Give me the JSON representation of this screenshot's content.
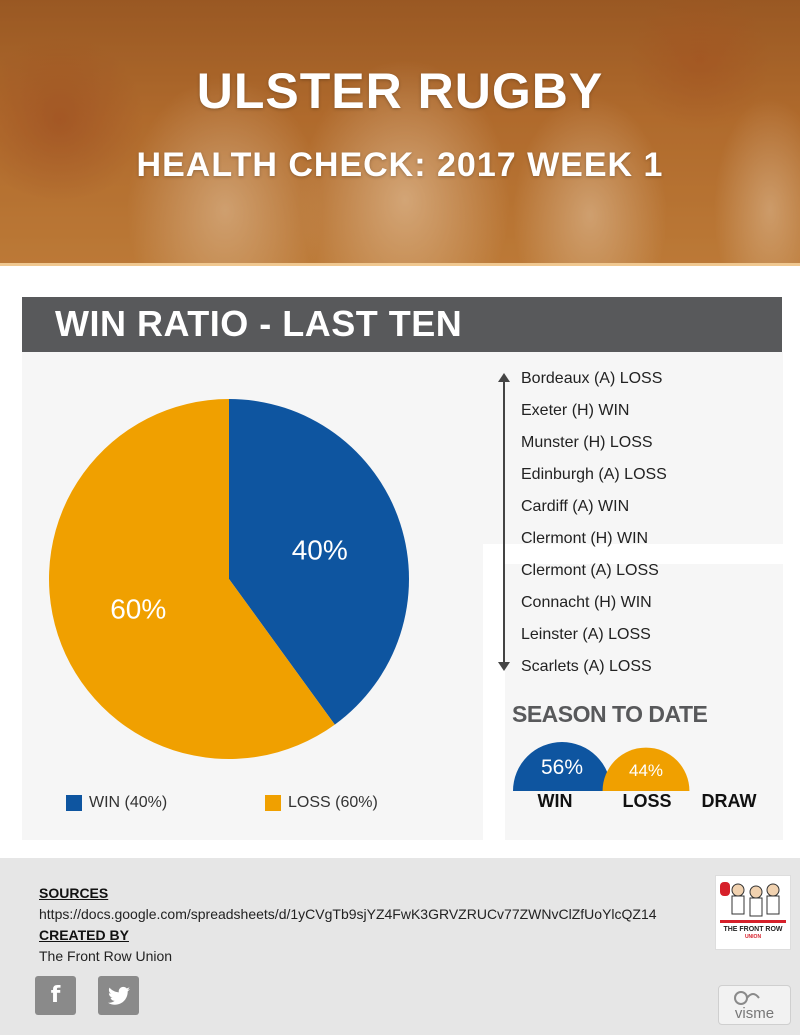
{
  "header": {
    "title": "ULSTER RUGBY",
    "subtitle": "HEALTH CHECK: 2017 WEEK 1"
  },
  "section_title": "WIN RATIO - LAST TEN",
  "chart_data": [
    {
      "type": "pie",
      "categories": [
        "WIN",
        "LOSS"
      ],
      "values": [
        40,
        60
      ],
      "labels": [
        "40%",
        "60%"
      ],
      "colors": [
        "#0e55a0",
        "#f0a000"
      ],
      "legend": [
        {
          "label": "WIN (40%)",
          "color": "#0e55a0"
        },
        {
          "label": "LOSS (60%)",
          "color": "#f0a000"
        }
      ],
      "legend_position": "bottom"
    },
    {
      "type": "pie",
      "title": "SEASON TO DATE",
      "categories": [
        "WIN",
        "LOSS",
        "DRAW"
      ],
      "values": [
        56,
        44,
        0
      ],
      "labels": [
        "56%",
        "44%",
        ""
      ],
      "colors": [
        "#0e55a0",
        "#f0a000",
        "#888888"
      ]
    }
  ],
  "results": [
    "Bordeaux (A) LOSS",
    "Exeter (H) WIN",
    "Munster (H) LOSS",
    "Edinburgh (A) LOSS",
    "Cardiff (A) WIN",
    "Clermont (H) WIN",
    "Clermont (A) LOSS",
    "Connacht (H) WIN",
    "Leinster (A) LOSS",
    "Scarlets (A) LOSS"
  ],
  "footer": {
    "sources_heading": "SOURCES",
    "sources_url": "https://docs.google.com/spreadsheets/d/1yCVgTb9sjYZ4FwK3GRVZRUCv77ZWNvClZfUoYlcQZ14",
    "created_heading": "CREATED BY",
    "created_by": "The Front Row Union",
    "social": [
      {
        "icon": "facebook-icon",
        "glyph": "f"
      },
      {
        "icon": "twitter-icon",
        "glyph": "t"
      }
    ],
    "logo_text": "THE FRONT ROW",
    "logo_subtext": "UNION",
    "badge_text": "visme"
  }
}
